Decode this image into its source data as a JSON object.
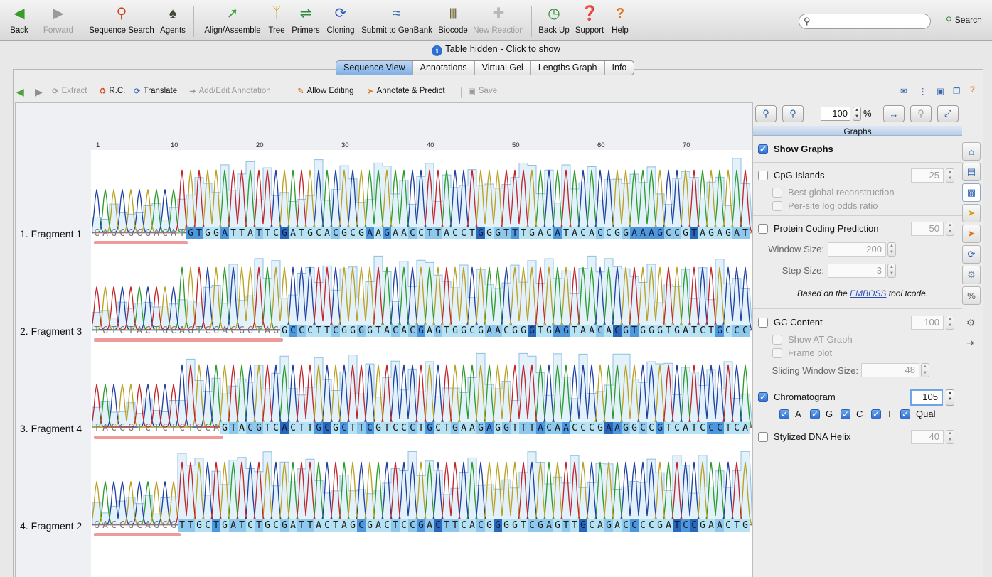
{
  "toolbar": {
    "back": "Back",
    "forward": "Forward",
    "sequence_search": "Sequence Search",
    "agents": "Agents",
    "align_assemble": "Align/Assemble",
    "tree": "Tree",
    "primers": "Primers",
    "cloning": "Cloning",
    "submit": "Submit to GenBank",
    "biocode": "Biocode",
    "new_reaction": "New Reaction",
    "back_up": "Back Up",
    "support": "Support",
    "help": "Help",
    "search_label": "Search"
  },
  "infobar": {
    "text": "Table hidden - Click to show"
  },
  "tabs": [
    "Sequence View",
    "Annotations",
    "Virtual Gel",
    "Lengths Graph",
    "Info"
  ],
  "subtoolbar": {
    "extract": "Extract",
    "rc": "R.C.",
    "translate": "Translate",
    "add_edit": "Add/Edit Annotation",
    "allow_editing": "Allow Editing",
    "annotate": "Annotate & Predict",
    "save": "Save"
  },
  "ruler": [
    "1",
    "10",
    "20",
    "30",
    "40",
    "50",
    "60",
    "70"
  ],
  "fragments": [
    {
      "name": "1. Fragment 1",
      "seq": "CAGCGCGACATGTGGATTATTCGATGCACGCGAAGAACCTTACCTGGGTTTGACATACACCGGAAAGCCGTAGAGAT"
    },
    {
      "name": "2. Fragment 3",
      "seq": "TGTCTACTGCAGTCGACGGTAGGCCCTTCGGGGTACACGAGTGGCGAACGGGTGAGTAACACGTGGGTGATCTGCCC"
    },
    {
      "name": "3. Fragment 4",
      "seq": "TACGGTCTCTCTGCAGTACGTCACTTGCGCTTCGTCCCTGCTGAAGAGGTTTACAACCCGAAGGCCGTCATCCCTCA"
    },
    {
      "name": "4. Fragment 2",
      "seq": "GACCGCAGCGTTGCTGATCTGCGATTACTAGCGACTCCGACTTCACGGGGTCGAGTTGCAGACCCCGATCCGAACTG"
    }
  ],
  "side": {
    "zoom": "100",
    "percent": "%",
    "graphs_title": "Graphs",
    "show_graphs": "Show Graphs",
    "cpg": "CpG Islands",
    "cpg_val": "25",
    "best_global": "Best global reconstruction",
    "per_site": "Per-site log odds ratio",
    "protein": "Protein Coding Prediction",
    "protein_val": "50",
    "window_size": "Window Size:",
    "window_val": "200",
    "step_size": "Step Size:",
    "step_val": "3",
    "note_pre": "Based on the",
    "note_link": "EMBOSS",
    "note_post": "tool tcode.",
    "gc": "GC Content",
    "gc_val": "100",
    "show_at": "Show AT Graph",
    "frame_plot": "Frame plot",
    "sliding": "Sliding Window Size:",
    "sliding_val": "48",
    "chromatogram": "Chromatogram",
    "chrom_val": "105",
    "ch_a": "A",
    "ch_g": "G",
    "ch_c": "C",
    "ch_t": "T",
    "ch_qual": "Qual",
    "helix": "Stylized DNA Helix",
    "helix_val": "40"
  },
  "colors": {
    "A": "#2a9a2a",
    "C": "#1f3f9e",
    "G": "#b8a020",
    "T": "#c0242a",
    "qual_fill": "#e3f1fb",
    "qual_line": "#8fbfe0"
  }
}
